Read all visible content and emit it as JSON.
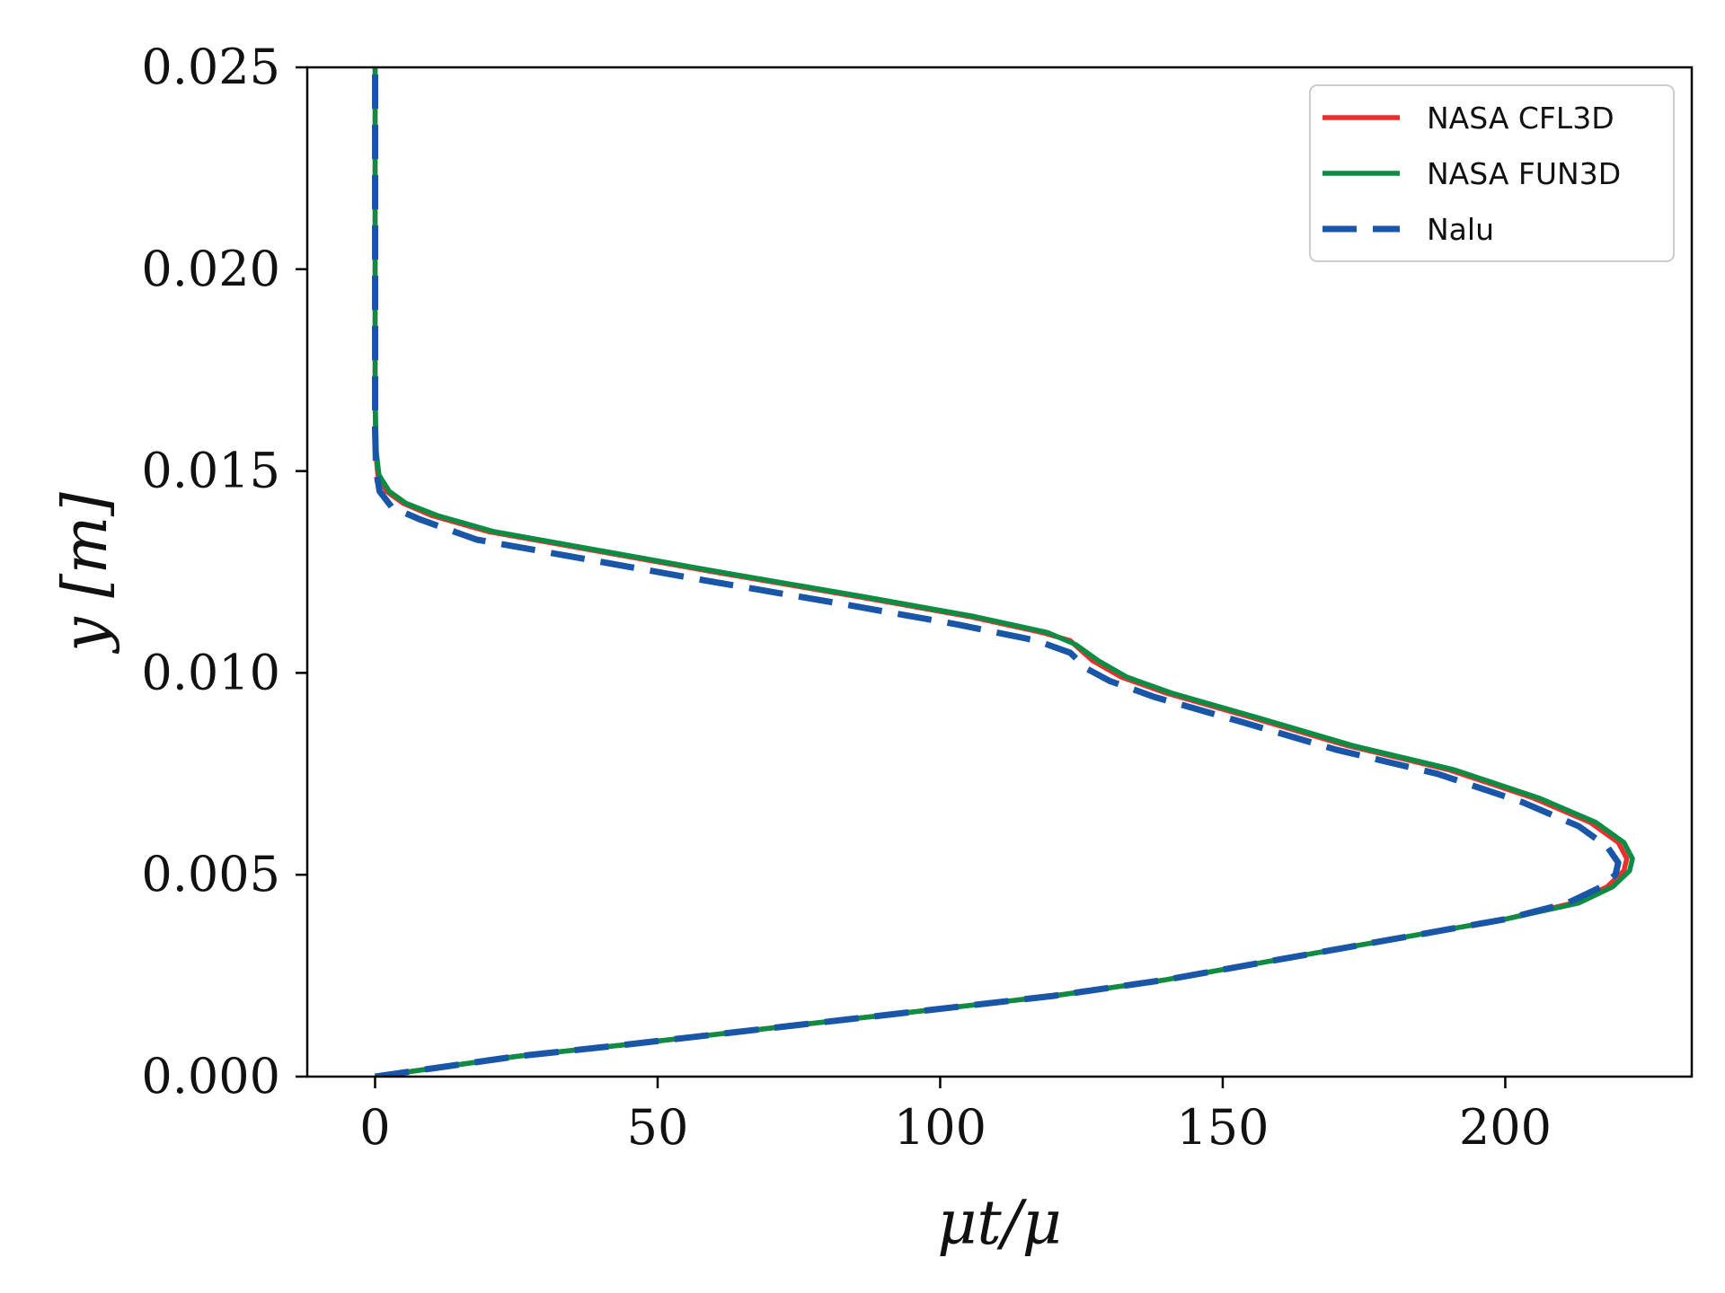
{
  "chart_data": {
    "type": "line",
    "title": "",
    "xlabel": "μt/μ",
    "ylabel": "y [m]",
    "xlim": [
      -12,
      233
    ],
    "ylim": [
      0,
      0.025
    ],
    "xticks": [
      0,
      50,
      100,
      150,
      200
    ],
    "xtick_labels": [
      "0",
      "50",
      "100",
      "150",
      "200"
    ],
    "yticks": [
      0,
      0.005,
      0.01,
      0.015,
      0.02,
      0.025
    ],
    "ytick_labels": [
      "0.000",
      "0.005",
      "0.010",
      "0.015",
      "0.020",
      "0.025"
    ],
    "grid": false,
    "legend_position": "top-right",
    "series": [
      {
        "name": "NASA CFL3D",
        "color": "#e8312f",
        "dash": "solid",
        "points": [
          [
            0,
            0
          ],
          [
            10,
            0.0002
          ],
          [
            25,
            0.0005
          ],
          [
            45,
            0.0008
          ],
          [
            70,
            0.0012
          ],
          [
            95,
            0.0016
          ],
          [
            120,
            0.002
          ],
          [
            140,
            0.0024
          ],
          [
            160,
            0.0029
          ],
          [
            180,
            0.0034
          ],
          [
            200,
            0.0039
          ],
          [
            212,
            0.0043
          ],
          [
            218,
            0.0047
          ],
          [
            221,
            0.0051
          ],
          [
            221.5,
            0.0054
          ],
          [
            220,
            0.0058
          ],
          [
            215,
            0.0063
          ],
          [
            205,
            0.0069
          ],
          [
            190,
            0.0076
          ],
          [
            172,
            0.0082
          ],
          [
            155,
            0.0089
          ],
          [
            140,
            0.0095
          ],
          [
            132,
            0.0099
          ],
          [
            127,
            0.0103
          ],
          [
            123,
            0.0108
          ],
          [
            118,
            0.011
          ],
          [
            105,
            0.0114
          ],
          [
            85,
            0.0119
          ],
          [
            60,
            0.0125
          ],
          [
            40,
            0.013
          ],
          [
            20,
            0.0135
          ],
          [
            10,
            0.0139
          ],
          [
            5,
            0.0142
          ],
          [
            2,
            0.0145
          ],
          [
            0.5,
            0.0149
          ],
          [
            0.1,
            0.0155
          ],
          [
            0,
            0.017
          ],
          [
            0,
            0.025
          ]
        ]
      },
      {
        "name": "NASA FUN3D",
        "color": "#0d8c43",
        "dash": "solid",
        "points": [
          [
            0,
            0
          ],
          [
            10,
            0.0002
          ],
          [
            25,
            0.0005
          ],
          [
            45,
            0.0008
          ],
          [
            70,
            0.0012
          ],
          [
            95,
            0.0016
          ],
          [
            120,
            0.002
          ],
          [
            140,
            0.0024
          ],
          [
            160,
            0.0029
          ],
          [
            180,
            0.0034
          ],
          [
            200,
            0.0039
          ],
          [
            213,
            0.0043
          ],
          [
            219,
            0.0047
          ],
          [
            222,
            0.0051
          ],
          [
            222.5,
            0.0054
          ],
          [
            221,
            0.0058
          ],
          [
            216,
            0.0063
          ],
          [
            206,
            0.0069
          ],
          [
            191,
            0.0076
          ],
          [
            173,
            0.0082
          ],
          [
            156,
            0.0089
          ],
          [
            141,
            0.0095
          ],
          [
            133,
            0.0099
          ],
          [
            128,
            0.0103
          ],
          [
            124,
            0.0107
          ],
          [
            119,
            0.011
          ],
          [
            106,
            0.0114
          ],
          [
            86,
            0.0119
          ],
          [
            61,
            0.0125
          ],
          [
            41,
            0.013
          ],
          [
            21,
            0.0135
          ],
          [
            11,
            0.0139
          ],
          [
            5.5,
            0.0142
          ],
          [
            2.5,
            0.0145
          ],
          [
            0.7,
            0.0149
          ],
          [
            0.2,
            0.0155
          ],
          [
            0,
            0.017
          ],
          [
            0,
            0.025
          ]
        ]
      },
      {
        "name": "Nalu",
        "color": "#1a56a8",
        "dash": "dashed",
        "points": [
          [
            0,
            0
          ],
          [
            10,
            0.0002
          ],
          [
            25,
            0.0005
          ],
          [
            45,
            0.0008
          ],
          [
            70,
            0.0012
          ],
          [
            95,
            0.0016
          ],
          [
            120,
            0.002
          ],
          [
            140,
            0.0024
          ],
          [
            160,
            0.0029
          ],
          [
            180,
            0.0034
          ],
          [
            200,
            0.0039
          ],
          [
            211,
            0.0043
          ],
          [
            217,
            0.0047
          ],
          [
            219.5,
            0.005
          ],
          [
            220,
            0.0053
          ],
          [
            218,
            0.0057
          ],
          [
            213,
            0.0062
          ],
          [
            203,
            0.0068
          ],
          [
            188,
            0.0075
          ],
          [
            170,
            0.0081
          ],
          [
            153,
            0.0088
          ],
          [
            138,
            0.0094
          ],
          [
            130,
            0.0098
          ],
          [
            126,
            0.0101
          ],
          [
            123,
            0.0105
          ],
          [
            117,
            0.0108
          ],
          [
            103,
            0.0112
          ],
          [
            83,
            0.0117
          ],
          [
            58,
            0.0123
          ],
          [
            38,
            0.0128
          ],
          [
            18,
            0.0133
          ],
          [
            8,
            0.0138
          ],
          [
            3,
            0.0141
          ],
          [
            0.8,
            0.0145
          ],
          [
            0.2,
            0.015
          ],
          [
            0,
            0.016
          ],
          [
            0,
            0.025
          ]
        ]
      }
    ]
  }
}
